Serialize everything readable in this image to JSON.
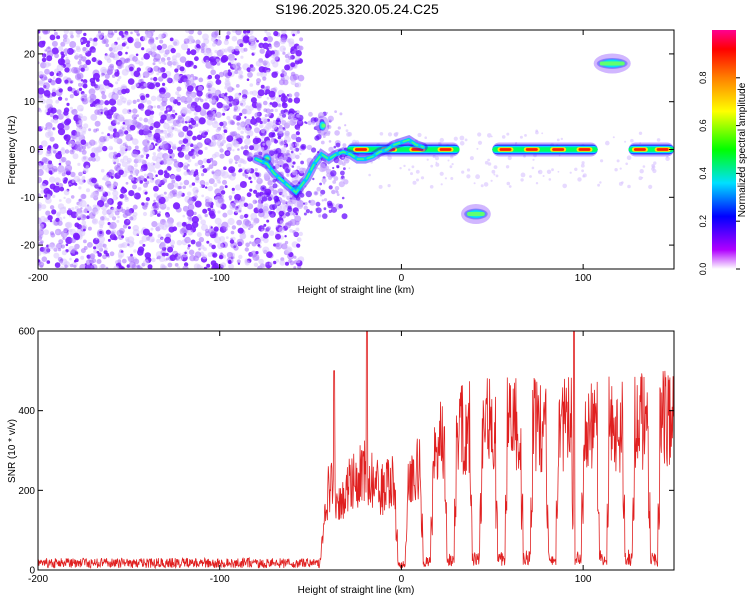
{
  "figure_title": "S196.2025.320.05.24.C25",
  "chart_data": [
    {
      "type": "heatmap",
      "title": "S196.2025.320.05.24.C25",
      "xlabel": "Height of straight line (km)",
      "ylabel": "Frequency (Hz)",
      "xlim": [
        -200,
        150
      ],
      "ylim": [
        -25,
        25
      ],
      "xticks": [
        -200,
        -100,
        0,
        100
      ],
      "yticks": [
        -20,
        -10,
        0,
        10,
        20
      ],
      "colorbar": {
        "label": "Normalized spectral amplitude",
        "range": [
          0,
          1
        ],
        "ticks": [
          "0.0",
          "0.2",
          "0.4",
          "0.6",
          "0.8"
        ],
        "ticks_values": [
          0.0,
          0.2,
          0.4,
          0.6,
          0.8
        ],
        "colors": [
          "#ffffff",
          "#b000ff",
          "#0000ff",
          "#00e0ff",
          "#00ff00",
          "#ffff00",
          "#ff8000",
          "#ff0000",
          "#ff0090"
        ]
      },
      "features": {
        "noise_region_x": [
          -200,
          -55
        ],
        "transition_region_x": [
          -80,
          -30
        ],
        "carrier_segments": [
          {
            "x": [
              -30,
              32
            ],
            "freq": 0
          },
          {
            "x": [
              50,
              108
            ],
            "freq": 0
          },
          {
            "x": [
              125,
              150
            ],
            "freq": 0
          }
        ],
        "blobs": [
          {
            "x": [
              35,
              47
            ],
            "freq": -13.5
          },
          {
            "x": [
              108,
              124
            ],
            "freq": 18
          },
          {
            "x": [
              -45,
              -42
            ],
            "freq": 5
          },
          {
            "x": [
              -76,
              -72
            ],
            "freq": -2
          },
          {
            "x": [
              -60,
              -56
            ],
            "freq": -8.5
          }
        ]
      }
    },
    {
      "type": "line",
      "xlabel": "Height of straight line (km)",
      "ylabel": "SNR (10 * v/v)",
      "xlim": [
        -200,
        150
      ],
      "ylim": [
        0,
        600
      ],
      "xticks": [
        -200,
        -100,
        0,
        100
      ],
      "yticks": [
        0,
        200,
        400,
        600
      ],
      "series_color": "#e02020",
      "envelope": {
        "x": [
          -200,
          -45,
          -42,
          -40,
          -35,
          -30,
          -25,
          -20,
          -15,
          -10,
          -5,
          0,
          5,
          10,
          15,
          20,
          25,
          30,
          35,
          40,
          45,
          50,
          60,
          70,
          80,
          90,
          100,
          110,
          120,
          130,
          140,
          150
        ],
        "y": [
          12,
          15,
          160,
          260,
          210,
          250,
          280,
          300,
          260,
          240,
          270,
          230,
          260,
          320,
          350,
          380,
          410,
          420,
          430,
          440,
          450,
          445,
          440,
          450,
          440,
          445,
          450,
          455,
          440,
          450,
          460,
          450
        ]
      },
      "spikes": [
        {
          "x": -37,
          "y": 500
        },
        {
          "x": -19,
          "y": 600
        },
        {
          "x": 95,
          "y": 600
        }
      ],
      "dips_x": [
        0,
        14,
        27,
        41,
        55,
        69,
        83,
        97,
        111,
        125,
        139
      ]
    }
  ]
}
